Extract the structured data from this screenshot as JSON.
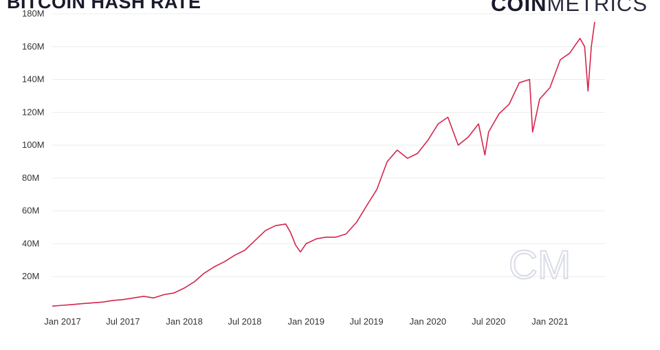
{
  "header": {
    "title": "BITCOIN HASH RATE",
    "logo_bold": "COIN",
    "logo_light": "METRICS",
    "watermark": "CM"
  },
  "colors": {
    "line": "#d4244a",
    "grid": "#ececec",
    "text": "#333333"
  },
  "chart_data": {
    "type": "line",
    "title": "BITCOIN HASH RATE",
    "xlabel": "",
    "ylabel": "",
    "y_tick_labels": [
      "20M",
      "40M",
      "60M",
      "80M",
      "100M",
      "120M",
      "140M",
      "160M",
      "180M"
    ],
    "y_ticks": [
      20,
      40,
      60,
      80,
      100,
      120,
      140,
      160,
      180
    ],
    "x_tick_labels": [
      "Jan 2017",
      "Jul 2017",
      "Jan 2018",
      "Jul 2018",
      "Jan 2019",
      "Jul 2019",
      "Jan 2020",
      "Jul 2020",
      "Jan 2021"
    ],
    "x_ticks": [
      "2017-01-01",
      "2017-07-01",
      "2018-01-01",
      "2018-07-01",
      "2019-01-01",
      "2019-07-01",
      "2020-01-01",
      "2020-07-01",
      "2021-01-01"
    ],
    "xlim": [
      "2016-12-01",
      "2021-06-15"
    ],
    "ylim": [
      0,
      180
    ],
    "unit": "M",
    "grid": true,
    "series": [
      {
        "values": [
          [
            "2016-12-01",
            2
          ],
          [
            "2017-01-01",
            2.5
          ],
          [
            "2017-02-01",
            3
          ],
          [
            "2017-03-01",
            3.5
          ],
          [
            "2017-04-01",
            4
          ],
          [
            "2017-05-01",
            4.5
          ],
          [
            "2017-06-01",
            5.5
          ],
          [
            "2017-07-01",
            6
          ],
          [
            "2017-08-01",
            7
          ],
          [
            "2017-09-01",
            8
          ],
          [
            "2017-10-01",
            7
          ],
          [
            "2017-11-01",
            9
          ],
          [
            "2017-12-01",
            10
          ],
          [
            "2018-01-01",
            13
          ],
          [
            "2018-02-01",
            17
          ],
          [
            "2018-03-01",
            22
          ],
          [
            "2018-04-01",
            26
          ],
          [
            "2018-05-01",
            29
          ],
          [
            "2018-06-01",
            33
          ],
          [
            "2018-07-01",
            36
          ],
          [
            "2018-08-01",
            42
          ],
          [
            "2018-09-01",
            48
          ],
          [
            "2018-10-01",
            51
          ],
          [
            "2018-11-01",
            52
          ],
          [
            "2018-11-15",
            47
          ],
          [
            "2018-12-01",
            39
          ],
          [
            "2018-12-15",
            35
          ],
          [
            "2019-01-01",
            40
          ],
          [
            "2019-02-01",
            43
          ],
          [
            "2019-03-01",
            44
          ],
          [
            "2019-04-01",
            44
          ],
          [
            "2019-05-01",
            46
          ],
          [
            "2019-06-01",
            53
          ],
          [
            "2019-07-01",
            63
          ],
          [
            "2019-08-01",
            73
          ],
          [
            "2019-09-01",
            90
          ],
          [
            "2019-10-01",
            97
          ],
          [
            "2019-11-01",
            92
          ],
          [
            "2019-12-01",
            95
          ],
          [
            "2020-01-01",
            103
          ],
          [
            "2020-02-01",
            113
          ],
          [
            "2020-03-01",
            117
          ],
          [
            "2020-04-01",
            100
          ],
          [
            "2020-05-01",
            105
          ],
          [
            "2020-06-01",
            113
          ],
          [
            "2020-06-20",
            94
          ],
          [
            "2020-07-01",
            108
          ],
          [
            "2020-08-01",
            119
          ],
          [
            "2020-09-01",
            125
          ],
          [
            "2020-10-01",
            138
          ],
          [
            "2020-11-01",
            140
          ],
          [
            "2020-11-10",
            108
          ],
          [
            "2020-12-01",
            128
          ],
          [
            "2021-01-01",
            135
          ],
          [
            "2021-02-01",
            152
          ],
          [
            "2021-03-01",
            156
          ],
          [
            "2021-04-01",
            165
          ],
          [
            "2021-04-15",
            160
          ],
          [
            "2021-04-25",
            133
          ],
          [
            "2021-05-05",
            160
          ],
          [
            "2021-05-15",
            175
          ]
        ]
      }
    ]
  }
}
